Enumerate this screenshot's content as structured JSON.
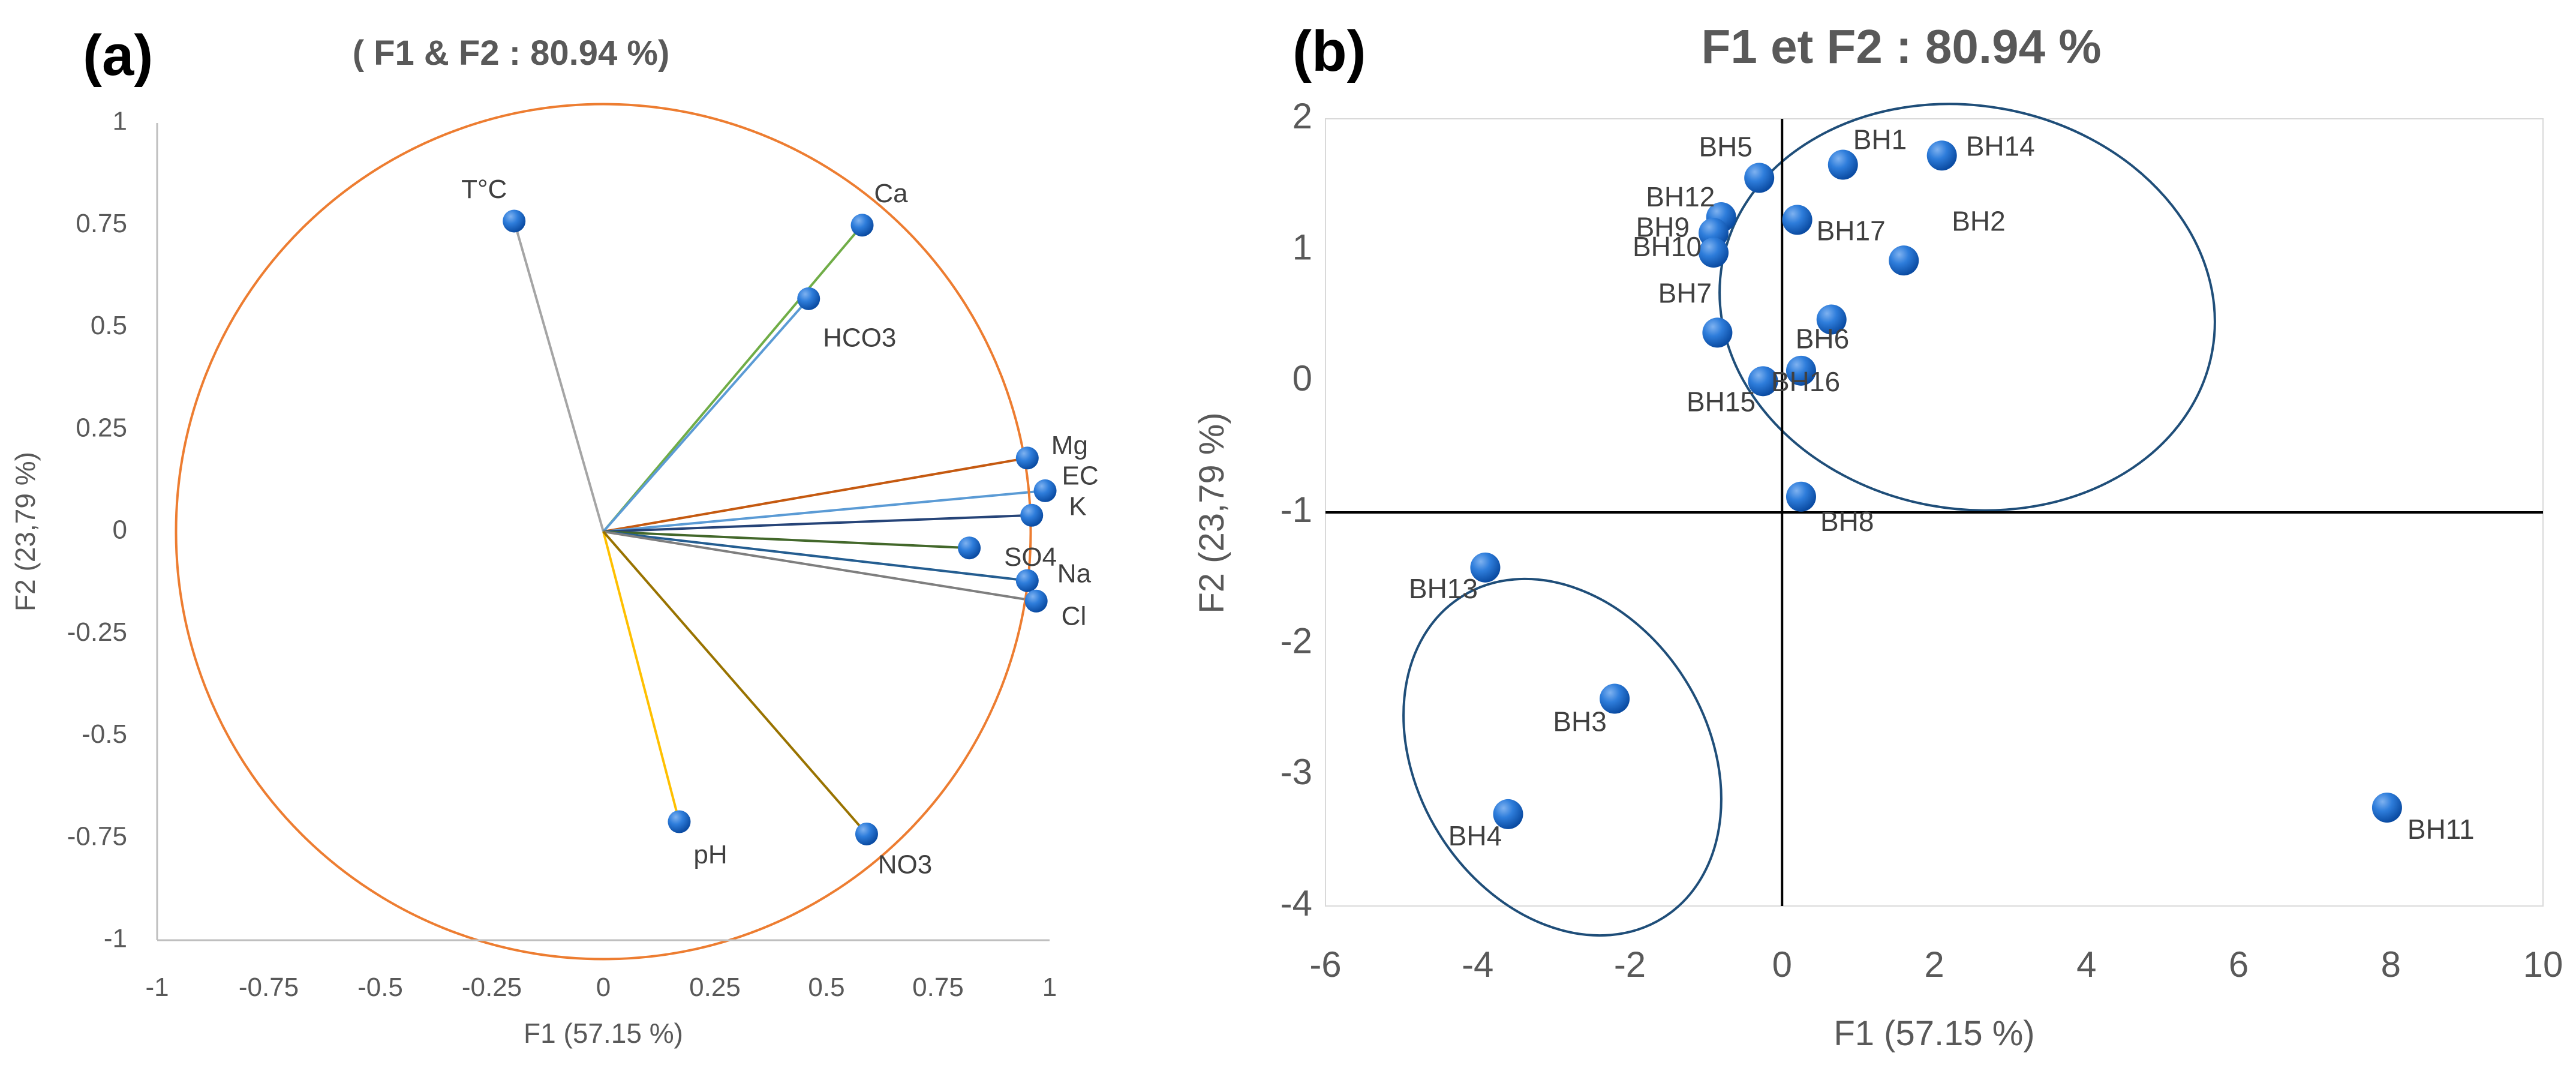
{
  "chart_data": [
    {
      "type": "scatter",
      "panel_label": "(a)",
      "title": "( F1 & F2 : 80.94 %)",
      "xlabel": "F1 (57.15 %)",
      "ylabel": "F2 (23,79 %)",
      "xlim": [
        -1,
        1
      ],
      "ylim": [
        -1,
        1
      ],
      "xticks": [
        -1,
        -0.75,
        -0.5,
        -0.25,
        0,
        0.25,
        0.5,
        0.75,
        1
      ],
      "yticks": [
        1,
        0.75,
        0.5,
        0.25,
        0,
        -0.25,
        -0.5,
        -0.75,
        -1
      ],
      "xtick_labels": [
        "-1",
        "-0.75",
        "-0.5",
        "-0.25",
        "0",
        "0.25",
        "0.5",
        "0.75",
        "1"
      ],
      "ytick_labels": [
        "1",
        "0.75",
        "0.5",
        "0.25",
        "0",
        "-0.25",
        "-0.5",
        "-0.75",
        "-1"
      ],
      "grid": false,
      "circle_radius": 1,
      "circle_color": "#ED7D31",
      "variables": [
        {
          "name": "T°C",
          "x": -0.2,
          "y": 0.76,
          "color": "#A5A5A5"
        },
        {
          "name": "Ca",
          "x": 0.58,
          "y": 0.75,
          "color": "#70AD47"
        },
        {
          "name": "HCO3",
          "x": 0.46,
          "y": 0.57,
          "color": "#5B9BD5"
        },
        {
          "name": "Mg",
          "x": 0.95,
          "y": 0.18,
          "color": "#C55A11"
        },
        {
          "name": "EC",
          "x": 0.99,
          "y": 0.1,
          "color": "#5B9BD5"
        },
        {
          "name": "K",
          "x": 0.96,
          "y": 0.04,
          "color": "#264478"
        },
        {
          "name": "SO4",
          "x": 0.82,
          "y": -0.04,
          "color": "#43682B"
        },
        {
          "name": "Na",
          "x": 0.95,
          "y": -0.12,
          "color": "#255E91"
        },
        {
          "name": "Cl",
          "x": 0.97,
          "y": -0.17,
          "color": "#7F7F7F"
        },
        {
          "name": "pH",
          "x": 0.17,
          "y": -0.71,
          "color": "#FFC000"
        },
        {
          "name": "NO3",
          "x": 0.59,
          "y": -0.74,
          "color": "#997300"
        }
      ]
    },
    {
      "type": "scatter",
      "panel_label": "(b)",
      "title": "F1 et F2 : 80.94 %",
      "xlabel": "F1 (57.15 %)",
      "ylabel": "F2 (23,79 %)",
      "xlim": [
        -6,
        10
      ],
      "ylim": [
        -4,
        2
      ],
      "xticks": [
        -6,
        -4,
        -2,
        0,
        2,
        4,
        6,
        8,
        10
      ],
      "yticks": [
        2,
        1,
        0,
        -1,
        -2,
        -3,
        -4
      ],
      "xtick_labels": [
        "-6",
        "-4",
        "-2",
        "0",
        "2",
        "4",
        "6",
        "8",
        "10"
      ],
      "ytick_labels": [
        "2",
        "1",
        "0",
        "-1",
        "-2",
        "-3",
        "-4"
      ],
      "grid": false,
      "reference_lines": {
        "vertical_x": 0,
        "horizontal_y": -1
      },
      "point_color": "#1F6FD1",
      "points": [
        {
          "name": "BH1",
          "x": 0.8,
          "y": 1.65
        },
        {
          "name": "BH14",
          "x": 2.1,
          "y": 1.72
        },
        {
          "name": "BH5",
          "x": -0.3,
          "y": 1.55
        },
        {
          "name": "BH12",
          "x": -0.8,
          "y": 1.25
        },
        {
          "name": "BH9",
          "x": -0.9,
          "y": 1.13
        },
        {
          "name": "BH17",
          "x": 0.2,
          "y": 1.23
        },
        {
          "name": "BH2",
          "x": 1.6,
          "y": 0.92
        },
        {
          "name": "BH10",
          "x": -0.9,
          "y": 0.98
        },
        {
          "name": "BH6",
          "x": 0.65,
          "y": 0.47
        },
        {
          "name": "BH16",
          "x": 0.25,
          "y": 0.08
        },
        {
          "name": "BH7",
          "x": -0.85,
          "y": 0.37
        },
        {
          "name": "BH15",
          "x": -0.25,
          "y": 0.0
        },
        {
          "name": "BH8",
          "x": 0.25,
          "y": -0.88
        },
        {
          "name": "BH13",
          "x": -3.9,
          "y": -1.42
        },
        {
          "name": "BH3",
          "x": -2.2,
          "y": -2.42
        },
        {
          "name": "BH4",
          "x": -3.6,
          "y": -3.3
        },
        {
          "name": "BH11",
          "x": 7.95,
          "y": -3.25
        }
      ],
      "ellipses": [
        {
          "name": "upper-group",
          "color": "#1F4E79"
        },
        {
          "name": "lower-group",
          "color": "#1F4E79"
        }
      ]
    }
  ]
}
